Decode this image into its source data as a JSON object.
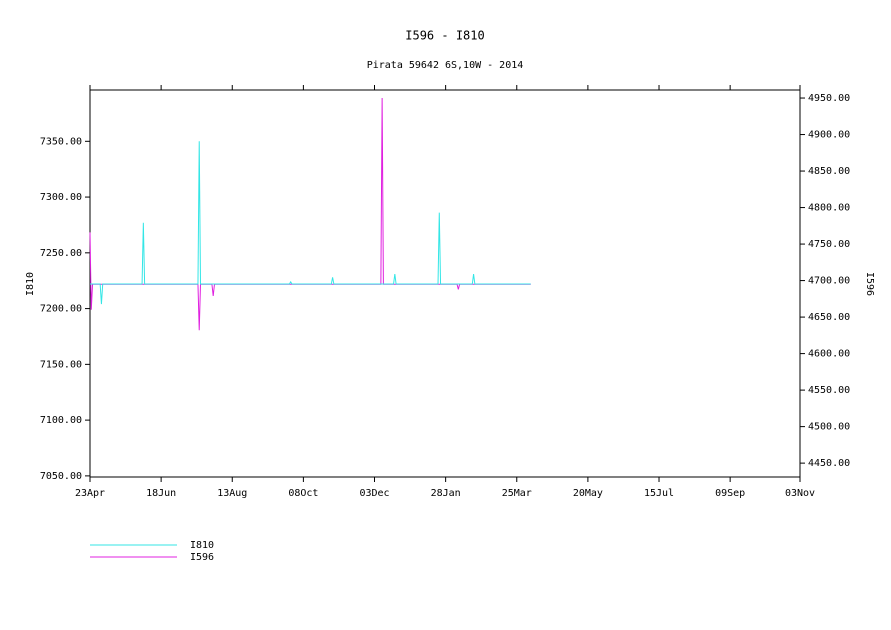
{
  "chart_data": {
    "type": "line",
    "title": "I596 - I810",
    "subtitle": "Pirata 59642 6S,10W - 2014",
    "ylabel": "I810",
    "y2label": "I596",
    "xlim": [
      0,
      559
    ],
    "xticks": [
      {
        "value": 0,
        "label": "23Apr"
      },
      {
        "value": 56,
        "label": "18Jun"
      },
      {
        "value": 112,
        "label": "13Aug"
      },
      {
        "value": 168,
        "label": "08Oct"
      },
      {
        "value": 224,
        "label": "03Dec"
      },
      {
        "value": 280,
        "label": "28Jan"
      },
      {
        "value": 336,
        "label": "25Mar"
      },
      {
        "value": 392,
        "label": "20May"
      },
      {
        "value": 448,
        "label": "15Jul"
      },
      {
        "value": 504,
        "label": "09Sep"
      },
      {
        "value": 559,
        "label": "03Nov"
      }
    ],
    "ylim": [
      7049,
      7396
    ],
    "yticks": [
      {
        "value": 7050,
        "label": "7050.00"
      },
      {
        "value": 7100,
        "label": "7100.00"
      },
      {
        "value": 7150,
        "label": "7150.00"
      },
      {
        "value": 7200,
        "label": "7200.00"
      },
      {
        "value": 7250,
        "label": "7250.00"
      },
      {
        "value": 7300,
        "label": "7300.00"
      },
      {
        "value": 7350,
        "label": "7350.00"
      }
    ],
    "y2lim": [
      4431,
      4961
    ],
    "y2ticks": [
      {
        "value": 4450,
        "label": "4450.00"
      },
      {
        "value": 4500,
        "label": "4500.00"
      },
      {
        "value": 4550,
        "label": "4550.00"
      },
      {
        "value": 4600,
        "label": "4600.00"
      },
      {
        "value": 4650,
        "label": "4650.00"
      },
      {
        "value": 4700,
        "label": "4700.00"
      },
      {
        "value": 4750,
        "label": "4750.00"
      },
      {
        "value": 4800,
        "label": "4800.00"
      },
      {
        "value": 4850,
        "label": "4850.00"
      },
      {
        "value": 4900,
        "label": "4900.00"
      },
      {
        "value": 4950,
        "label": "4950.00"
      }
    ],
    "series": [
      {
        "name": "I810",
        "color": "#33e6e6",
        "x": [
          0,
          8,
          9,
          10,
          41,
          42,
          43,
          85,
          86,
          87,
          157,
          158,
          159,
          190,
          191,
          192,
          239,
          240,
          241,
          274,
          275,
          276,
          301,
          302,
          303,
          347
        ],
        "values": [
          7222,
          7222,
          7204,
          7222,
          7222,
          7277,
          7222,
          7222,
          7350,
          7222,
          7222,
          7224,
          7222,
          7222,
          7228,
          7222,
          7222,
          7231,
          7222,
          7222,
          7286,
          7222,
          7222,
          7231,
          7222,
          7222
        ]
      },
      {
        "name": "I596",
        "color": "#e020e0",
        "axis": "y2",
        "x": [
          0,
          1,
          2,
          85,
          86,
          87,
          96,
          97,
          98,
          229,
          230,
          231,
          289,
          290,
          291,
          347
        ],
        "values": [
          4766,
          4660,
          4695,
          4695,
          4632,
          4695,
          4695,
          4679,
          4695,
          4695,
          4950,
          4695,
          4695,
          4688,
          4695,
          4695
        ]
      }
    ]
  }
}
